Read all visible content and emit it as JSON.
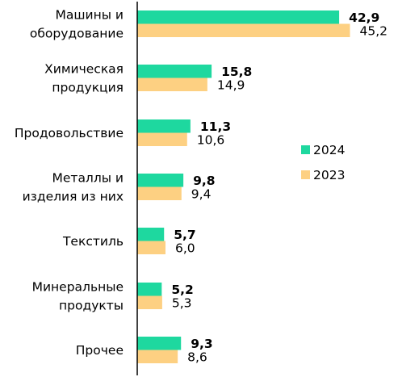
{
  "chart_data": {
    "type": "bar",
    "orientation": "horizontal",
    "categories": [
      [
        "Машины и",
        "оборудование"
      ],
      [
        "Химическая",
        "продукция"
      ],
      [
        "Продовольствие"
      ],
      [
        "Металлы и",
        "изделия из них"
      ],
      [
        "Текстиль"
      ],
      [
        "Минеральные",
        "продукты"
      ],
      [
        "Прочее"
      ]
    ],
    "series": [
      {
        "name": "2024",
        "color": "#1ed89f",
        "values": [
          42.9,
          15.8,
          11.3,
          9.8,
          5.7,
          5.2,
          9.3
        ],
        "labels": [
          "42,9",
          "15,8",
          "11,3",
          "9,8",
          "5,7",
          "5,2",
          "9,3"
        ]
      },
      {
        "name": "2023",
        "color": "#fdd082",
        "values": [
          45.2,
          14.9,
          10.6,
          9.4,
          6.0,
          5.3,
          8.6
        ],
        "labels": [
          "45,2",
          "14,9",
          "10,6",
          "9,4",
          "6,0",
          "5,3",
          "8,6"
        ]
      }
    ],
    "xlim": [
      0,
      48
    ],
    "grid": false,
    "legend_position": "right"
  }
}
